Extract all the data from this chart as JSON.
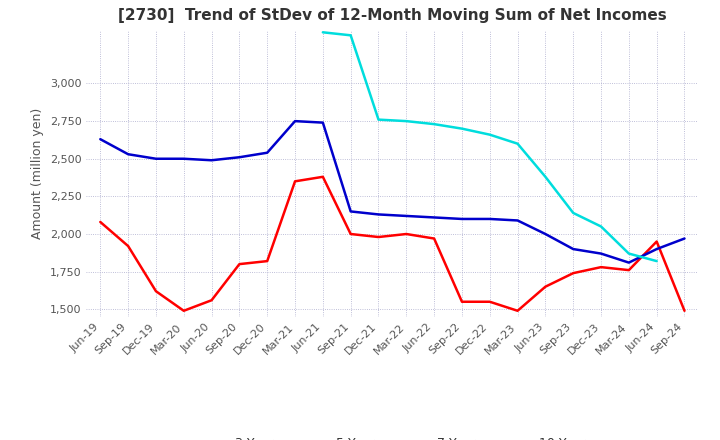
{
  "title": "[2730]  Trend of StDev of 12-Month Moving Sum of Net Incomes",
  "ylabel": "Amount (million yen)",
  "ylim": [
    1450,
    3350
  ],
  "yticks": [
    1500,
    1750,
    2000,
    2250,
    2500,
    2750,
    3000
  ],
  "background_color": "#ffffff",
  "grid_color": "#aaaacc",
  "series": {
    "3 Years": {
      "color": "#ff0000",
      "data": [
        [
          "Jun-19",
          2080
        ],
        [
          "Sep-19",
          1920
        ],
        [
          "Dec-19",
          1620
        ],
        [
          "Mar-20",
          1490
        ],
        [
          "Jun-20",
          1560
        ],
        [
          "Sep-20",
          1800
        ],
        [
          "Dec-20",
          1820
        ],
        [
          "Mar-21",
          2350
        ],
        [
          "Jun-21",
          2380
        ],
        [
          "Sep-21",
          2000
        ],
        [
          "Dec-21",
          1980
        ],
        [
          "Mar-22",
          2000
        ],
        [
          "Jun-22",
          1970
        ],
        [
          "Sep-22",
          1550
        ],
        [
          "Dec-22",
          1550
        ],
        [
          "Mar-23",
          1490
        ],
        [
          "Jun-23",
          1650
        ],
        [
          "Sep-23",
          1740
        ],
        [
          "Dec-23",
          1780
        ],
        [
          "Mar-24",
          1760
        ],
        [
          "Jun-24",
          1950
        ],
        [
          "Sep-24",
          1490
        ]
      ]
    },
    "5 Years": {
      "color": "#0000cc",
      "data": [
        [
          "Jun-19",
          2630
        ],
        [
          "Sep-19",
          2530
        ],
        [
          "Dec-19",
          2500
        ],
        [
          "Mar-20",
          2500
        ],
        [
          "Jun-20",
          2490
        ],
        [
          "Sep-20",
          2510
        ],
        [
          "Dec-20",
          2540
        ],
        [
          "Mar-21",
          2750
        ],
        [
          "Jun-21",
          2740
        ],
        [
          "Sep-21",
          2150
        ],
        [
          "Dec-21",
          2130
        ],
        [
          "Mar-22",
          2120
        ],
        [
          "Jun-22",
          2110
        ],
        [
          "Sep-22",
          2100
        ],
        [
          "Dec-22",
          2100
        ],
        [
          "Mar-23",
          2090
        ],
        [
          "Jun-23",
          2000
        ],
        [
          "Sep-23",
          1900
        ],
        [
          "Dec-23",
          1870
        ],
        [
          "Mar-24",
          1810
        ],
        [
          "Jun-24",
          1900
        ],
        [
          "Sep-24",
          1970
        ]
      ]
    },
    "7 Years": {
      "color": "#00dddd",
      "data": [
        [
          "Jun-21",
          3340
        ],
        [
          "Sep-21",
          3320
        ],
        [
          "Dec-21",
          2760
        ],
        [
          "Mar-22",
          2750
        ],
        [
          "Jun-22",
          2730
        ],
        [
          "Sep-22",
          2700
        ],
        [
          "Dec-22",
          2660
        ],
        [
          "Mar-23",
          2600
        ],
        [
          "Jun-23",
          2380
        ],
        [
          "Sep-23",
          2140
        ],
        [
          "Dec-23",
          2050
        ],
        [
          "Mar-24",
          1870
        ],
        [
          "Jun-24",
          1820
        ]
      ]
    },
    "10 Years": {
      "color": "#008000",
      "data": []
    }
  },
  "x_labels": [
    "Jun-19",
    "Sep-19",
    "Dec-19",
    "Mar-20",
    "Jun-20",
    "Sep-20",
    "Dec-20",
    "Mar-21",
    "Jun-21",
    "Sep-21",
    "Dec-21",
    "Mar-22",
    "Jun-22",
    "Sep-22",
    "Dec-22",
    "Mar-23",
    "Jun-23",
    "Sep-23",
    "Dec-23",
    "Mar-24",
    "Jun-24",
    "Sep-24"
  ],
  "title_fontsize": 11,
  "label_fontsize": 9,
  "tick_fontsize": 8,
  "legend_fontsize": 9,
  "line_width": 1.8
}
